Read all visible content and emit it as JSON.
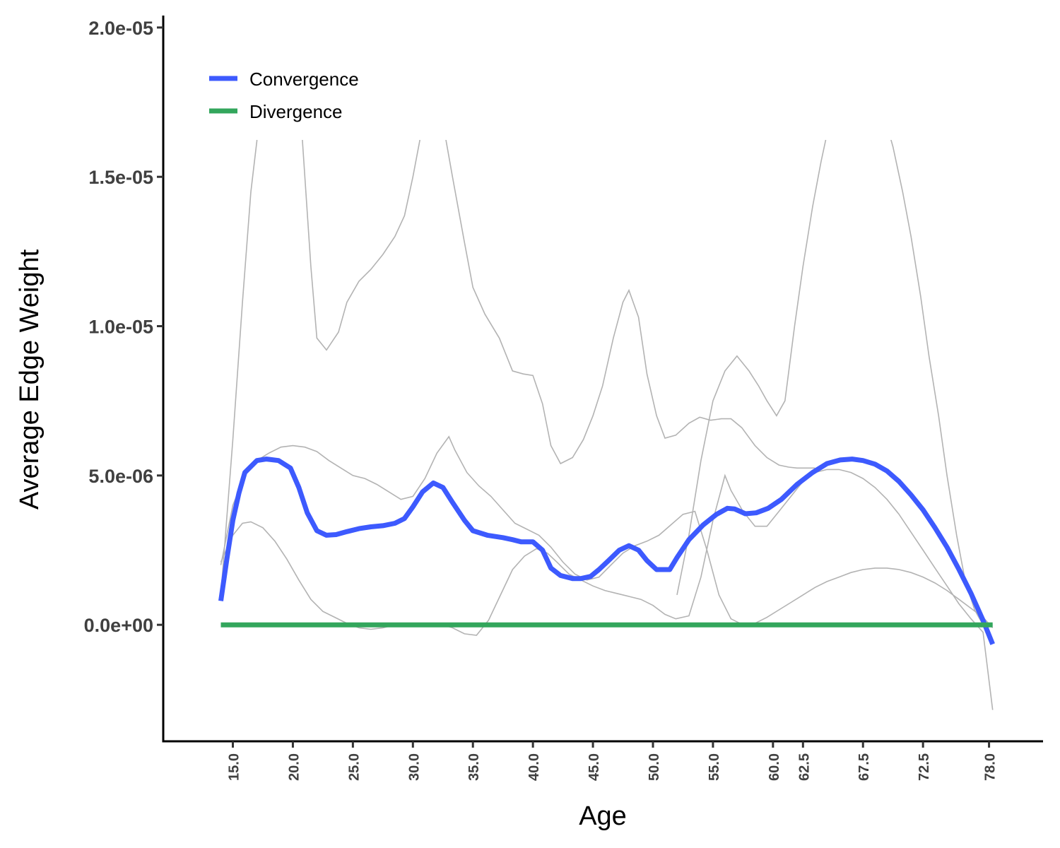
{
  "chart_data": {
    "type": "line",
    "xlabel": "Age",
    "ylabel": "Average Edge Weight",
    "xlim": [
      9.2,
      82.5
    ],
    "ylim": [
      -3.9e-06,
      2.04e-05
    ],
    "x_ticks": [
      15.0,
      20.0,
      25.0,
      30.0,
      35.0,
      40.0,
      45.0,
      50.0,
      55.0,
      60.0,
      62.5,
      67.5,
      72.5,
      78.0
    ],
    "x_tick_labels": [
      "15.0",
      "20.0",
      "25.0",
      "30.0",
      "35.0",
      "40.0",
      "45.0",
      "50.0",
      "55.0",
      "60.0",
      "62.5",
      "67.5",
      "72.5",
      "78.0"
    ],
    "y_ticks": [
      0,
      5e-06,
      1e-05,
      1.5e-05,
      2e-05
    ],
    "y_tick_labels": [
      "0.0e+00",
      "5.0e-06",
      "1.0e-05",
      "1.5e-05",
      "2.0e-05"
    ],
    "grid": false,
    "legend_position": "top-left",
    "series": [
      {
        "name": "Convergence",
        "color": "#3d5afe",
        "x": [
          14,
          14.5,
          15,
          15.5,
          16,
          17,
          17.8,
          18.8,
          19.8,
          20.5,
          21.2,
          22,
          22.8,
          23.6,
          24.5,
          25.5,
          26.5,
          27.5,
          28.5,
          29.3,
          30,
          30.8,
          31.7,
          32.5,
          33.3,
          34.3,
          35,
          36.2,
          37.5,
          38.3,
          39,
          40,
          40.8,
          41.5,
          42.3,
          43.3,
          44,
          44.8,
          45.5,
          46.3,
          47.2,
          48,
          48.8,
          49.5,
          50.3,
          51.4,
          52,
          53,
          54.2,
          55.3,
          56.2,
          56.8,
          57.7,
          58.6,
          59.6,
          60.7,
          62,
          63.3,
          64.5,
          65.6,
          66.6,
          67.5,
          68.5,
          69.5,
          70.5,
          71.5,
          72.5,
          73.5,
          74.5,
          75.5,
          76.5,
          77.5,
          78.3
        ],
        "values": [
          8e-07,
          2.2e-06,
          3.5e-06,
          4.4e-06,
          5.1e-06,
          5.5e-06,
          5.55e-06,
          5.5e-06,
          5.25e-06,
          4.6e-06,
          3.75e-06,
          3.15e-06,
          3e-06,
          3.02e-06,
          3.12e-06,
          3.22e-06,
          3.28e-06,
          3.32e-06,
          3.4e-06,
          3.56e-06,
          3.95e-06,
          4.45e-06,
          4.75e-06,
          4.6e-06,
          4.1e-06,
          3.5e-06,
          3.15e-06,
          3e-06,
          2.92e-06,
          2.85e-06,
          2.78e-06,
          2.78e-06,
          2.5e-06,
          1.9e-06,
          1.65e-06,
          1.55e-06,
          1.55e-06,
          1.62e-06,
          1.85e-06,
          2.15e-06,
          2.5e-06,
          2.65e-06,
          2.5e-06,
          2.15e-06,
          1.85e-06,
          1.85e-06,
          2.25e-06,
          2.85e-06,
          3.35e-06,
          3.7e-06,
          3.9e-06,
          3.88e-06,
          3.72e-06,
          3.75e-06,
          3.9e-06,
          4.2e-06,
          4.7e-06,
          5.1e-06,
          5.4e-06,
          5.52e-06,
          5.55e-06,
          5.5e-06,
          5.38e-06,
          5.15e-06,
          4.8e-06,
          4.35e-06,
          3.85e-06,
          3.25e-06,
          2.6e-06,
          1.85e-06,
          1.05e-06,
          1.5e-07,
          -6.5e-07
        ]
      },
      {
        "name": "Divergence",
        "color": "#33a65c",
        "x": [
          14,
          78.3
        ],
        "values": [
          0,
          0
        ]
      }
    ],
    "background_series": [
      {
        "x": [
          14,
          15,
          15.8,
          16.5,
          17,
          17.5,
          18,
          19,
          20,
          20.8,
          21.5,
          22,
          22.8,
          23.8,
          24.5,
          25.5,
          26.5,
          27.5,
          28.5,
          29.3,
          30,
          30.8,
          31.7,
          32.5,
          33.3,
          34.3,
          35,
          36,
          37.2,
          38.3,
          39.2,
          40,
          40.8,
          41.5,
          42.3,
          43.3,
          44.2,
          45,
          45.8,
          46.7,
          47.5,
          48,
          48.8,
          49.5,
          50.3,
          51,
          51.9,
          53,
          53.9,
          54.8,
          55.7,
          56.5,
          57.4,
          58.5,
          59.5,
          60.5,
          61.3,
          62,
          63.5
        ],
        "values": [
          1e-06,
          6.2e-06,
          1.08e-05,
          1.45e-05,
          1.62e-05,
          2.05e-05,
          2.05e-05,
          2.05e-05,
          2.05e-05,
          1.62e-05,
          1.2e-05,
          9.6e-06,
          9.2e-06,
          9.8e-06,
          1.08e-05,
          1.15e-05,
          1.19e-05,
          1.24e-05,
          1.3e-05,
          1.37e-05,
          1.5e-05,
          1.67e-05,
          1.75e-05,
          1.68e-05,
          1.5e-05,
          1.28e-05,
          1.13e-05,
          1.04e-05,
          9.6e-06,
          8.5e-06,
          8.4e-06,
          8.35e-06,
          7.4e-06,
          6e-06,
          5.4e-06,
          5.6e-06,
          6.2e-06,
          7e-06,
          8e-06,
          9.6e-06,
          1.08e-05,
          1.12e-05,
          1.03e-05,
          8.4e-06,
          7e-06,
          6.25e-06,
          6.35e-06,
          6.75e-06,
          6.95e-06,
          6.85e-06,
          6.9e-06,
          6.9e-06,
          6.6e-06,
          6e-06,
          5.6e-06,
          5.35e-06,
          5.28e-06,
          5.25e-06,
          5.25e-06
        ]
      },
      {
        "x": [
          14,
          15,
          15.8,
          16.5,
          17.5,
          18.5,
          19.5,
          20.5,
          21.5,
          22.5,
          23.5,
          24.5,
          25.5,
          26.5,
          27.5,
          28.5,
          29.3,
          30,
          30.8,
          31.7,
          32.5,
          33.3,
          34.3,
          35.3,
          36.3,
          37.3,
          38.3,
          39.3,
          40.3,
          41.2,
          42,
          43,
          44,
          45,
          46,
          47,
          48,
          49,
          50,
          51,
          51.9,
          53,
          54,
          55,
          56,
          56.5,
          57.5,
          58.5,
          59.5,
          60.5,
          61.5,
          62.5,
          63.5,
          64.5,
          65.5,
          66.5,
          67.5,
          68.5,
          69.5,
          70.5,
          71.5,
          72.5,
          73.5,
          74.5,
          75.5,
          76.5,
          77.5,
          78.3
        ],
        "values": [
          2.1e-06,
          3e-06,
          3.4e-06,
          3.45e-06,
          3.25e-06,
          2.8e-06,
          2.2e-06,
          1.5e-06,
          8.5e-07,
          4.5e-07,
          2.5e-07,
          5e-08,
          -1e-07,
          -1.5e-07,
          -1e-07,
          0,
          0,
          0,
          0,
          0,
          0,
          -1e-07,
          -3e-07,
          -3.5e-07,
          1.5e-07,
          1e-06,
          1.85e-06,
          2.3e-06,
          2.55e-06,
          2.4e-06,
          2.1e-06,
          1.7e-06,
          1.5e-06,
          1.3e-06,
          1.15e-06,
          1.05e-06,
          9.5e-07,
          8.5e-07,
          6.5e-07,
          3.5e-07,
          2e-07,
          3e-07,
          1.6e-06,
          3.5e-06,
          5e-06,
          4.5e-06,
          3.8e-06,
          3.3e-06,
          3.3e-06,
          3.8e-06,
          4.3e-06,
          4.8e-06,
          5.1e-06,
          5.2e-06,
          5.2e-06,
          5.1e-06,
          4.9e-06,
          4.6e-06,
          4.2e-06,
          3.7e-06,
          3.1e-06,
          2.5e-06,
          1.9e-06,
          1.3e-06,
          7e-07,
          2e-07,
          -2.5e-07,
          -2.85e-06
        ]
      },
      {
        "x": [
          14,
          15,
          16,
          17,
          18,
          19,
          20,
          21,
          22,
          23,
          24,
          25,
          26,
          27,
          28,
          29,
          30,
          31,
          32,
          33,
          33.5,
          34.5,
          35.5,
          36.5,
          37.5,
          38.5,
          39.5,
          40.5,
          41.5,
          42.5,
          43.5,
          44.5,
          45.5,
          46.5,
          47.5,
          48.5,
          49.5,
          50.5,
          51.5,
          52.5,
          53.5,
          54.5,
          55.5,
          56.5,
          57.5,
          58.5,
          59.5,
          60.5,
          61.5,
          62.5,
          63.5,
          64.5,
          65.5,
          66.5,
          67.5,
          68.5,
          69.5,
          70.5,
          71.5,
          72.5,
          73.5,
          74.5,
          75.5,
          76.5,
          77.5,
          78.3
        ],
        "values": [
          2e-06,
          4e-06,
          5e-06,
          5.5e-06,
          5.75e-06,
          5.95e-06,
          6e-06,
          5.95e-06,
          5.8e-06,
          5.5e-06,
          5.25e-06,
          5e-06,
          4.9e-06,
          4.7e-06,
          4.45e-06,
          4.2e-06,
          4.3e-06,
          4.9e-06,
          5.75e-06,
          6.3e-06,
          5.85e-06,
          5.1e-06,
          4.65e-06,
          4.3e-06,
          3.85e-06,
          3.4e-06,
          3.2e-06,
          3e-06,
          2.6e-06,
          2.1e-06,
          1.7e-06,
          1.5e-06,
          1.6e-06,
          2e-06,
          2.4e-06,
          2.65e-06,
          2.8e-06,
          3e-06,
          3.35e-06,
          3.7e-06,
          3.8e-06,
          2.5e-06,
          1e-06,
          2e-07,
          0,
          5e-08,
          2.5e-07,
          5e-07,
          7.5e-07,
          1e-06,
          1.25e-06,
          1.45e-06,
          1.6e-06,
          1.75e-06,
          1.85e-06,
          1.9e-06,
          1.9e-06,
          1.85e-06,
          1.75e-06,
          1.6e-06,
          1.4e-06,
          1.15e-06,
          8.5e-07,
          5.5e-07,
          2.5e-07,
          -1e-07
        ]
      },
      {
        "x": [
          52,
          53,
          54,
          55,
          56,
          57,
          58,
          58.8,
          59.5,
          60.3,
          61,
          61.8,
          62.5,
          63.3,
          64,
          64.8,
          65.5,
          66.3,
          67,
          67.8,
          68.5,
          69.3,
          70,
          70.8,
          71.5,
          72.3,
          73,
          73.8,
          74.5,
          75.3,
          76,
          76.8,
          77.5,
          78.3
        ],
        "values": [
          1e-06,
          3e-06,
          5.5e-06,
          7.5e-06,
          8.5e-06,
          9e-06,
          8.5e-06,
          8e-06,
          7.5e-06,
          7e-06,
          7.5e-06,
          1e-05,
          1.2e-05,
          1.4e-05,
          1.55e-05,
          1.7e-05,
          1.8e-05,
          1.84e-05,
          1.85e-05,
          1.83e-05,
          1.78e-05,
          1.7e-05,
          1.6e-05,
          1.45e-05,
          1.3e-05,
          1.1e-05,
          9e-06,
          7e-06,
          5e-06,
          3e-06,
          1.5e-06,
          5e-07,
          0,
          0
        ]
      }
    ]
  }
}
